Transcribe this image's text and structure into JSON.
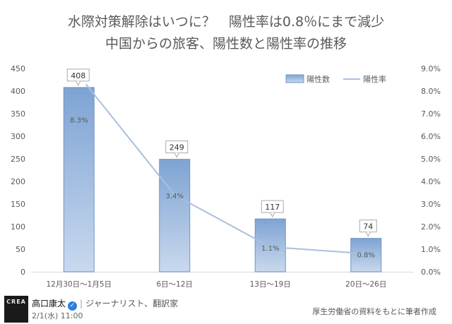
{
  "chart_data": {
    "type": "bar+line",
    "title": "水際対策解除はいつに？　陽性率は0.8％にまで減少",
    "subtitle": "中国からの旅客、陽性数と陽性率の推移",
    "categories": [
      "12月30日〜1月5日",
      "6日〜12日",
      "13日〜19日",
      "20日〜26日"
    ],
    "series": [
      {
        "name": "陽性数",
        "type": "bar",
        "axis": "left",
        "values": [
          408,
          249,
          117,
          74
        ],
        "labels": [
          "408",
          "249",
          "117",
          "74"
        ]
      },
      {
        "name": "陽性率",
        "type": "line",
        "axis": "right",
        "values": [
          8.3,
          3.4,
          1.1,
          0.8
        ],
        "labels": [
          "8.3%",
          "3.4%",
          "1.1%",
          "0.8%"
        ]
      }
    ],
    "left_axis": {
      "ylim": [
        0,
        450
      ],
      "ticks": [
        "0",
        "50",
        "100",
        "150",
        "200",
        "250",
        "300",
        "350",
        "400",
        "450"
      ]
    },
    "right_axis": {
      "ylim": [
        0,
        9
      ],
      "ticks": [
        "0.0%",
        "1.0%",
        "2.0%",
        "3.0%",
        "4.0%",
        "5.0%",
        "6.0%",
        "7.0%",
        "8.0%",
        "9.0%"
      ]
    },
    "grid": false,
    "legend": "top-right",
    "colors": {
      "bar_fill_top": "#7ea3d3",
      "bar_fill_bottom": "#c9d9ee",
      "bar_edge": "#6f95c7",
      "line": "#a9bfdc",
      "axis_text": "#595959",
      "label_box_edge": "#aaaaaa"
    }
  },
  "footer": {
    "avatar_text": "CREA",
    "author_name": "高口康太",
    "verified_icon": "✓",
    "separator": "|",
    "author_role": "ジャーナリスト、翻訳家",
    "datetime": "2/1(水) 11:00",
    "source_note": "厚生労働省の資料をもとに筆者作成"
  }
}
